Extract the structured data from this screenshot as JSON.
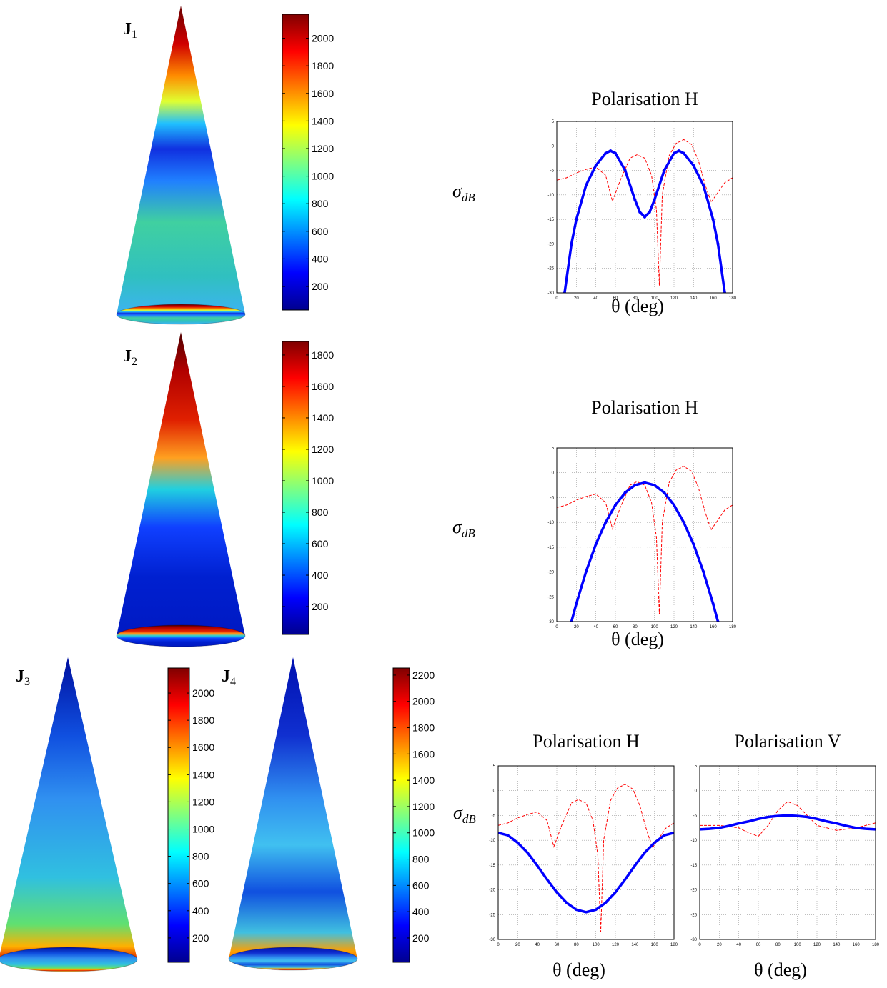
{
  "chart_data": [
    {
      "type": "colorbar",
      "label": {
        "symbol": "J",
        "index": "1"
      },
      "ylim": [
        29,
        2174
      ],
      "yticks": [
        200,
        400,
        600,
        800,
        1000,
        1200,
        1400,
        1600,
        1800,
        2000
      ]
    },
    {
      "type": "colorbar",
      "label": {
        "symbol": "J",
        "index": "2"
      },
      "ylim": [
        23,
        1886
      ],
      "yticks": [
        200,
        400,
        600,
        800,
        1000,
        1200,
        1400,
        1600,
        1800
      ]
    },
    {
      "type": "colorbar",
      "label": {
        "symbol": "J",
        "index": "3"
      },
      "ylim": [
        21,
        2184
      ],
      "yticks": [
        200,
        400,
        600,
        800,
        1000,
        1200,
        1400,
        1600,
        1800,
        2000
      ]
    },
    {
      "type": "colorbar",
      "label": {
        "symbol": "J",
        "index": "4"
      },
      "ylim": [
        15,
        2254
      ],
      "yticks": [
        200,
        400,
        600,
        800,
        1000,
        1200,
        1400,
        1600,
        1800,
        2000,
        2200
      ]
    },
    {
      "type": "line",
      "title": "Polarisation H",
      "ylabel": {
        "symbol": "σ",
        "sub": "dB"
      },
      "xlabel": "θ (deg)",
      "xlim": [
        0,
        180
      ],
      "ylim": [
        -30,
        5
      ],
      "xticks": [
        0,
        20,
        40,
        60,
        80,
        100,
        120,
        140,
        160,
        180
      ],
      "yticks": [
        -30,
        -25,
        -20,
        -15,
        -10,
        -5,
        0,
        5
      ],
      "grid": true,
      "series": [
        {
          "color": "#0000ff",
          "dash": false,
          "markers": true,
          "x": [
            8,
            15,
            20,
            30,
            40,
            50,
            55,
            60,
            70,
            80,
            85,
            90,
            95,
            100,
            110,
            120,
            125,
            130,
            140,
            150,
            160,
            165,
            172
          ],
          "values": [
            -30,
            -20,
            -15,
            -8,
            -4,
            -1.5,
            -1,
            -1.5,
            -5,
            -11,
            -13.5,
            -14.5,
            -13.5,
            -11,
            -5,
            -1.5,
            -1,
            -1.5,
            -4,
            -8,
            -15,
            -20,
            -30
          ]
        },
        {
          "color": "#ff0000",
          "dash": true,
          "markers": false,
          "x": [
            0,
            10,
            20,
            30,
            40,
            50,
            57,
            65,
            75,
            82,
            90,
            97,
            102,
            105,
            108,
            115,
            122,
            130,
            138,
            145,
            152,
            158,
            165,
            172,
            180
          ],
          "values": [
            -7,
            -6.5,
            -5.5,
            -4.8,
            -4.3,
            -6,
            -11.3,
            -7,
            -2.5,
            -1.8,
            -2.5,
            -6,
            -13,
            -28.5,
            -10,
            -2,
            0.5,
            1.3,
            0.3,
            -3,
            -8,
            -11.5,
            -9.5,
            -7.5,
            -6.5
          ]
        }
      ]
    },
    {
      "type": "line",
      "title": "Polarisation H",
      "ylabel": {
        "symbol": "σ",
        "sub": "dB"
      },
      "xlabel": "θ (deg)",
      "xlim": [
        0,
        180
      ],
      "ylim": [
        -30,
        5
      ],
      "xticks": [
        0,
        20,
        40,
        60,
        80,
        100,
        120,
        140,
        160,
        180
      ],
      "yticks": [
        -30,
        -25,
        -20,
        -15,
        -10,
        -5,
        0,
        5
      ],
      "grid": true,
      "series": [
        {
          "color": "#0000ff",
          "dash": false,
          "markers": true,
          "x": [
            15,
            20,
            30,
            40,
            50,
            60,
            70,
            80,
            90,
            100,
            110,
            120,
            130,
            140,
            150,
            160,
            165
          ],
          "values": [
            -30,
            -26.4,
            -19.9,
            -14.4,
            -10,
            -6.5,
            -4,
            -2.5,
            -2,
            -2.5,
            -4,
            -6.5,
            -10,
            -14.4,
            -19.9,
            -26.4,
            -30
          ]
        },
        {
          "color": "#ff0000",
          "dash": true,
          "markers": false,
          "x": [
            0,
            10,
            20,
            30,
            40,
            50,
            57,
            65,
            75,
            82,
            90,
            97,
            102,
            105,
            108,
            115,
            122,
            130,
            138,
            145,
            152,
            158,
            165,
            172,
            180
          ],
          "values": [
            -7,
            -6.5,
            -5.5,
            -4.8,
            -4.3,
            -6,
            -11.3,
            -7,
            -2.5,
            -1.8,
            -2.5,
            -6,
            -13,
            -28.5,
            -10,
            -2,
            0.5,
            1.3,
            0.3,
            -3,
            -8,
            -11.5,
            -9.5,
            -7.5,
            -6.5
          ]
        }
      ]
    },
    {
      "type": "line",
      "title": "Polarisation H",
      "ylabel": {
        "symbol": "σ",
        "sub": "dB"
      },
      "xlabel": "θ (deg)",
      "xlim": [
        0,
        180
      ],
      "ylim": [
        -30,
        5
      ],
      "xticks": [
        0,
        20,
        40,
        60,
        80,
        100,
        120,
        140,
        160,
        180
      ],
      "yticks": [
        -30,
        -25,
        -20,
        -15,
        -10,
        -5,
        0,
        5
      ],
      "grid": true,
      "series": [
        {
          "color": "#0000ff",
          "dash": false,
          "markers": false,
          "x": [
            0,
            10,
            20,
            30,
            40,
            50,
            60,
            70,
            80,
            90,
            100,
            110,
            120,
            130,
            140,
            150,
            160,
            170,
            180
          ],
          "values": [
            -8.5,
            -9,
            -10.5,
            -12.5,
            -15.1,
            -17.9,
            -20.5,
            -22.6,
            -24,
            -24.5,
            -24,
            -22.6,
            -20.5,
            -17.9,
            -15.1,
            -12.5,
            -10.5,
            -9,
            -8.5
          ]
        },
        {
          "color": "#ff0000",
          "dash": true,
          "markers": false,
          "x": [
            0,
            10,
            20,
            30,
            40,
            50,
            57,
            65,
            75,
            82,
            90,
            97,
            102,
            105,
            108,
            115,
            122,
            130,
            138,
            145,
            152,
            158,
            165,
            172,
            180
          ],
          "values": [
            -7,
            -6.5,
            -5.5,
            -4.8,
            -4.3,
            -6,
            -11.3,
            -7,
            -2.5,
            -1.8,
            -2.5,
            -6,
            -13,
            -28.5,
            -10,
            -2,
            0.5,
            1.3,
            0.3,
            -3,
            -8,
            -11.5,
            -9.5,
            -7.5,
            -6.5
          ]
        }
      ]
    },
    {
      "type": "line",
      "title": "Polarisation V",
      "xlabel": "θ (deg)",
      "xlim": [
        0,
        180
      ],
      "ylim": [
        -30,
        5
      ],
      "xticks": [
        0,
        20,
        40,
        60,
        80,
        100,
        120,
        140,
        160,
        180
      ],
      "yticks": [
        -30,
        -25,
        -20,
        -15,
        -10,
        -5,
        0,
        5
      ],
      "grid": true,
      "series": [
        {
          "color": "#0000ff",
          "dash": false,
          "markers": false,
          "x": [
            0,
            10,
            20,
            30,
            40,
            50,
            60,
            70,
            80,
            90,
            100,
            110,
            120,
            130,
            140,
            150,
            160,
            170,
            180
          ],
          "values": [
            -7.8,
            -7.7,
            -7.5,
            -7.1,
            -6.6,
            -6.2,
            -5.7,
            -5.3,
            -5.1,
            -5,
            -5.1,
            -5.3,
            -5.7,
            -6.2,
            -6.6,
            -7.1,
            -7.5,
            -7.7,
            -7.8
          ]
        },
        {
          "color": "#ff0000",
          "dash": true,
          "markers": false,
          "x": [
            0,
            20,
            40,
            50,
            60,
            70,
            80,
            90,
            100,
            110,
            120,
            140,
            160,
            180
          ],
          "values": [
            -7,
            -7,
            -7.5,
            -8.5,
            -9.2,
            -7,
            -4,
            -2.2,
            -3,
            -5,
            -7,
            -8,
            -7.5,
            -6.5
          ]
        }
      ]
    }
  ]
}
